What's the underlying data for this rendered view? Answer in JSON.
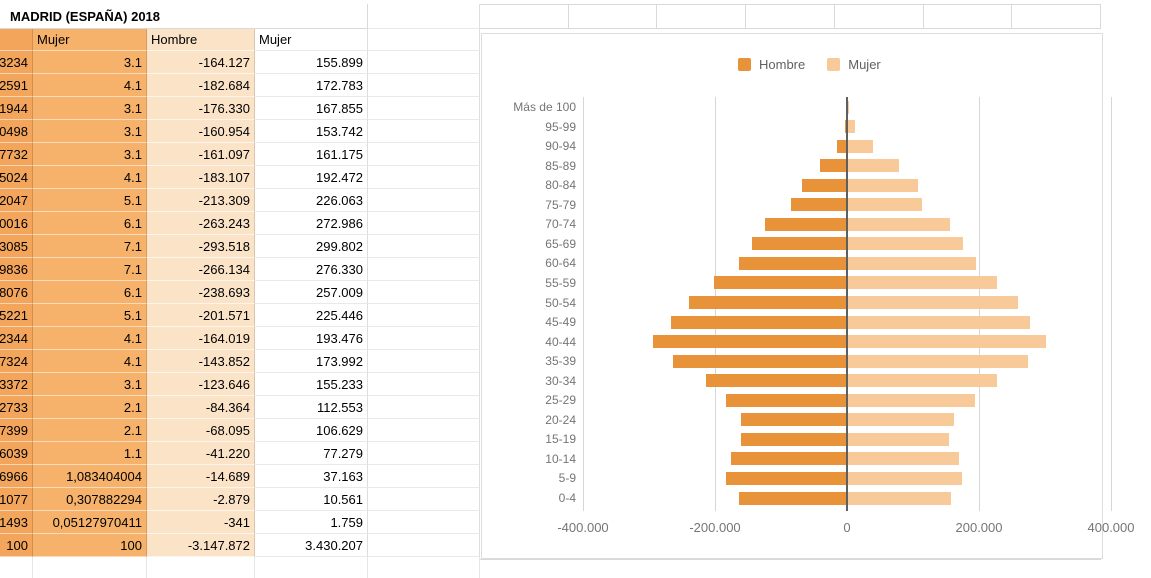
{
  "sheet": {
    "title": "MADRID (ESPAÑA) 2018",
    "headers": [
      "",
      "Mujer",
      "Hombre",
      "Mujer"
    ],
    "rows": [
      [
        "3234",
        "3.1",
        "-164.127",
        "155.899"
      ],
      [
        "2591",
        "4.1",
        "-182.684",
        "172.783"
      ],
      [
        "1944",
        "3.1",
        "-176.330",
        "167.855"
      ],
      [
        "0498",
        "3.1",
        "-160.954",
        "153.742"
      ],
      [
        "7732",
        "3.1",
        "-161.097",
        "161.175"
      ],
      [
        "5024",
        "4.1",
        "-183.107",
        "192.472"
      ],
      [
        "2047",
        "5.1",
        "-213.309",
        "226.063"
      ],
      [
        "0016",
        "6.1",
        "-263.243",
        "272.986"
      ],
      [
        "3085",
        "7.1",
        "-293.518",
        "299.802"
      ],
      [
        "9836",
        "7.1",
        "-266.134",
        "276.330"
      ],
      [
        "8076",
        "6.1",
        "-238.693",
        "257.009"
      ],
      [
        "5221",
        "5.1",
        "-201.571",
        "225.446"
      ],
      [
        "2344",
        "4.1",
        "-164.019",
        "193.476"
      ],
      [
        "7324",
        "4.1",
        "-143.852",
        "173.992"
      ],
      [
        "3372",
        "3.1",
        "-123.646",
        "155.233"
      ],
      [
        "2733",
        "2.1",
        "-84.364",
        "112.553"
      ],
      [
        "7399",
        "2.1",
        "-68.095",
        "106.629"
      ],
      [
        "6039",
        "1.1",
        "-41.220",
        "77.279"
      ],
      [
        "6966",
        "1,083404004",
        "-14.689",
        "37.163"
      ],
      [
        "1077",
        "0,307882294",
        "-2.879",
        "10.561"
      ],
      [
        "1493",
        "0,05127970411",
        "-341",
        "1.759"
      ],
      [
        "100",
        "100",
        "-3.147.872",
        "3.430.207"
      ]
    ]
  },
  "chart_data": {
    "type": "bar",
    "orientation": "horizontal",
    "title": "",
    "legend_position": "top",
    "categories": [
      "Más de 100",
      "95-99",
      "90-94",
      "85-89",
      "80-84",
      "75-79",
      "70-74",
      "65-69",
      "60-64",
      "55-59",
      "50-54",
      "45-49",
      "40-44",
      "35-39",
      "30-34",
      "25-29",
      "20-24",
      "15-19",
      "10-14",
      "5-9",
      "0-4"
    ],
    "series": [
      {
        "name": "Hombre",
        "color": "#E8923A",
        "values": [
          -341,
          -2879,
          -14689,
          -41220,
          -68095,
          -84364,
          -123646,
          -143852,
          -164019,
          -201571,
          -238693,
          -266134,
          -293518,
          -263243,
          -213309,
          -183107,
          -161097,
          -160954,
          -176330,
          -182684,
          -164127
        ]
      },
      {
        "name": "Mujer",
        "color": "#F8CA99",
        "values": [
          1759,
          10561,
          37163,
          77279,
          106629,
          112553,
          155233,
          173992,
          193476,
          225446,
          257009,
          276330,
          299802,
          272986,
          226063,
          192472,
          161175,
          153742,
          167855,
          172783,
          155899
        ]
      }
    ],
    "xlim": [
      -400000,
      400000
    ],
    "x_ticks": [
      {
        "value": -400000,
        "label": "-400.000"
      },
      {
        "value": -200000,
        "label": "-200.000"
      },
      {
        "value": 0,
        "label": "0"
      },
      {
        "value": 200000,
        "label": "200.000"
      },
      {
        "value": 400000,
        "label": "400.000"
      }
    ],
    "grid": true
  },
  "colors": {
    "hombre": "#E8923A",
    "mujer": "#F8CA99",
    "table_col1_bg": "#F3A55C",
    "table_col2_bg": "#F6B26B",
    "table_col3_bg": "#FBE3C8",
    "axis_text": "#757575",
    "zero_line": "#5F5F5F"
  }
}
